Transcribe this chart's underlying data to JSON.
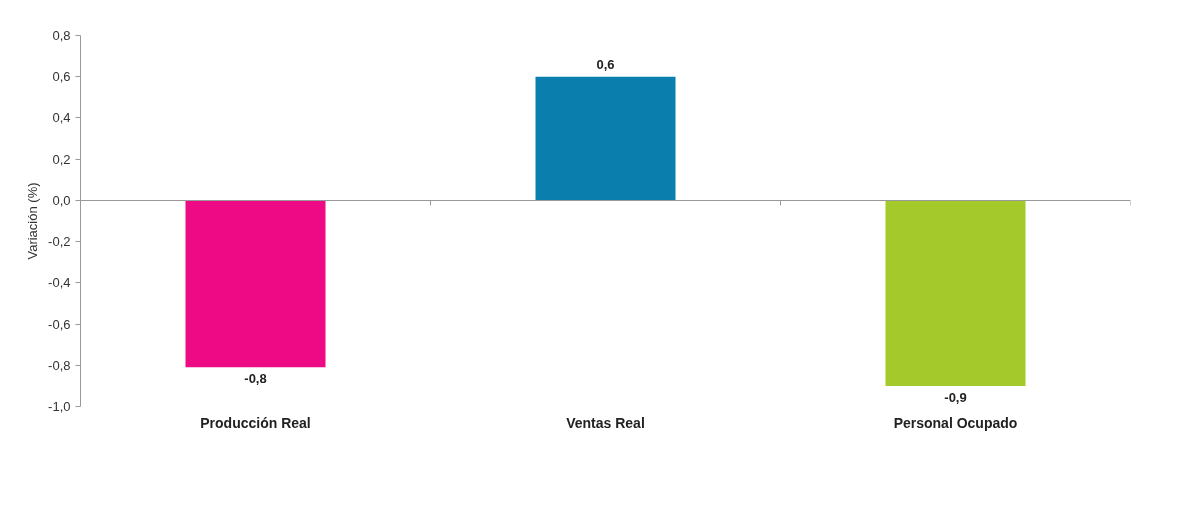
{
  "chart_data": {
    "type": "bar",
    "ylabel": "Variación (%)",
    "categories": [
      "Producción Real",
      "Ventas Real",
      "Personal Ocupado"
    ],
    "values": [
      -0.81,
      0.6,
      -0.9
    ],
    "colors": [
      "#ee0a84",
      "#0a7fae",
      "#a4c92a"
    ],
    "value_labels": [
      "-0,8",
      "0,6",
      "-0,9"
    ],
    "ylim": [
      -1.0,
      0.8
    ],
    "yticks": [
      {
        "value": 0.8,
        "label": "0,8"
      },
      {
        "value": 0.6,
        "label": "0,6"
      },
      {
        "value": 0.4,
        "label": "0,4"
      },
      {
        "value": 0.2,
        "label": "0,2"
      },
      {
        "value": 0.0,
        "label": "0,0"
      },
      {
        "value": -0.2,
        "label": "-0,2"
      },
      {
        "value": -0.4,
        "label": "-0,4"
      },
      {
        "value": -0.6,
        "label": "-0,6"
      },
      {
        "value": -0.8,
        "label": "-0,8"
      },
      {
        "value": -1.0,
        "label": "-1,0"
      }
    ]
  }
}
